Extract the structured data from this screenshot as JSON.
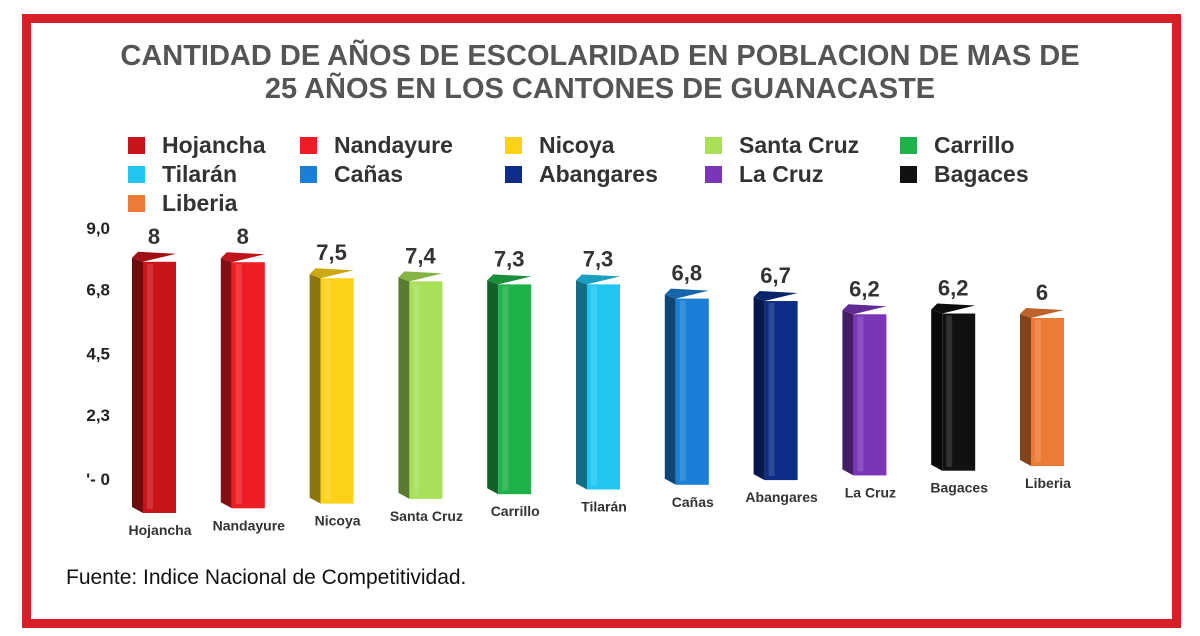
{
  "chart_data": {
    "type": "bar",
    "title": "CANTIDAD DE AÑOS DE ESCOLARIDAD EN POBLACION DE MAS DE 25 AÑOS EN LOS CANTONES DE GUANACASTE",
    "title_lines": [
      "CANTIDAD DE AÑOS DE ESCOLARIDAD EN POBLACION DE MAS DE",
      "25 AÑOS EN LOS CANTONES DE GUANACASTE"
    ],
    "categories": [
      "Hojancha",
      "Nandayure",
      "Nicoya",
      "Santa Cruz",
      "Carrillo",
      "Tilarán",
      "Cañas",
      "Abangares",
      "La Cruz",
      "Bagaces",
      "Liberia"
    ],
    "values": [
      8,
      8,
      7.5,
      7.4,
      7.3,
      7.3,
      6.8,
      6.7,
      6.2,
      6.2,
      6
    ],
    "value_labels": [
      "8",
      "8",
      "7,5",
      "7,4",
      "7,3",
      "7,3",
      "6,8",
      "6,7",
      "6,2",
      "6,2",
      "6"
    ],
    "colors": [
      "#c8141a",
      "#ee1c24",
      "#ffd21a",
      "#a8e05a",
      "#1fb24a",
      "#22c6f0",
      "#1a7fd6",
      "#0d2d86",
      "#7a35b8",
      "#111111",
      "#ec7c35"
    ],
    "yticks": [
      0,
      2.3,
      4.5,
      6.8,
      9.0
    ],
    "ytick_labels": [
      "'- 0",
      "2,3",
      "4,5",
      "6,8",
      "9,0"
    ],
    "ylim": [
      0,
      9
    ],
    "xlabel": "",
    "ylabel": "",
    "grid": false,
    "legend_position": "top"
  },
  "source": "Fuente: Indice Nacional de Competitividad."
}
